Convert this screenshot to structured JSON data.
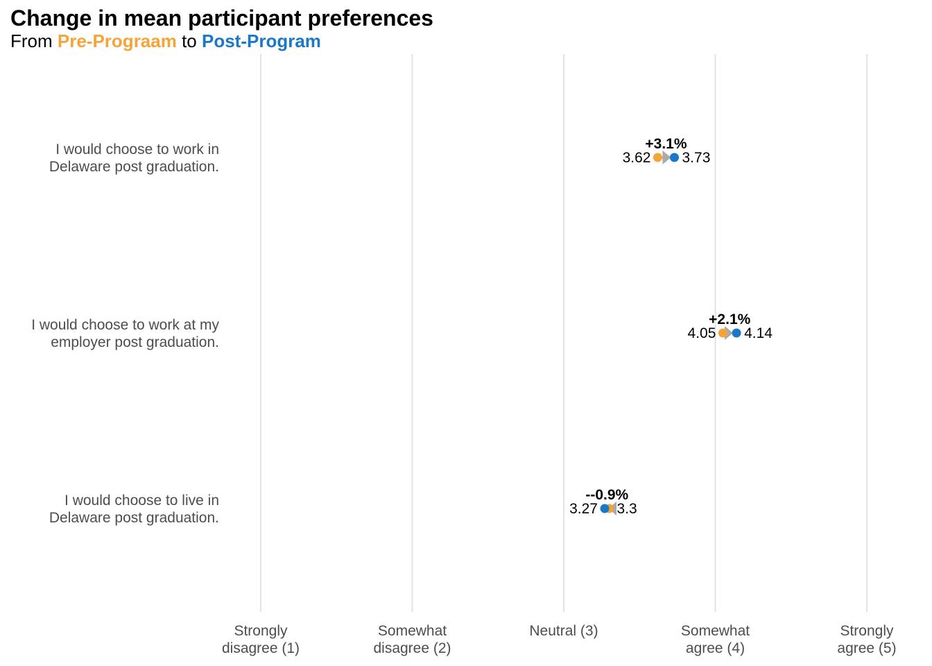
{
  "title": "Change in mean participant preferences",
  "subtitle": {
    "prefix": "From ",
    "pre_label": "Pre-Prograam",
    "middle": " to ",
    "post_label": "Post-Program"
  },
  "colors": {
    "pre": "#F5A43A",
    "post": "#1B78C8",
    "arrow": "#AAAAAA",
    "grid": "#E3E3E3",
    "axis_text": "#4D4D4D",
    "label_text": "#000000"
  },
  "chart_data": {
    "type": "dumbbell",
    "xlim": [
      1,
      5
    ],
    "x_ticks": [
      {
        "value": 1,
        "label": [
          "Strongly",
          "disagree (1)"
        ]
      },
      {
        "value": 2,
        "label": [
          "Somewhat",
          "disagree (2)"
        ]
      },
      {
        "value": 3,
        "label": [
          "Neutral (3)"
        ]
      },
      {
        "value": 4,
        "label": [
          "Somewhat",
          "agree (4)"
        ]
      },
      {
        "value": 5,
        "label": [
          "Strongly",
          "agree (5)"
        ]
      }
    ],
    "grid": "vertical",
    "categories": [
      {
        "label": [
          "I would choose to work in",
          "Delaware post graduation."
        ],
        "pre": 3.62,
        "post": 3.73,
        "pre_label": "3.62",
        "post_label": "3.73",
        "change": "+3.1%"
      },
      {
        "label": [
          "I would choose to work at my",
          "employer post graduation."
        ],
        "pre": 4.05,
        "post": 4.14,
        "pre_label": "4.05",
        "post_label": "4.14",
        "change": "+2.1%"
      },
      {
        "label": [
          "I would choose to live in",
          "Delaware post graduation."
        ],
        "pre": 3.3,
        "post": 3.27,
        "pre_label": "3.3",
        "post_label": "3.27",
        "change": "--0.9%"
      }
    ]
  }
}
